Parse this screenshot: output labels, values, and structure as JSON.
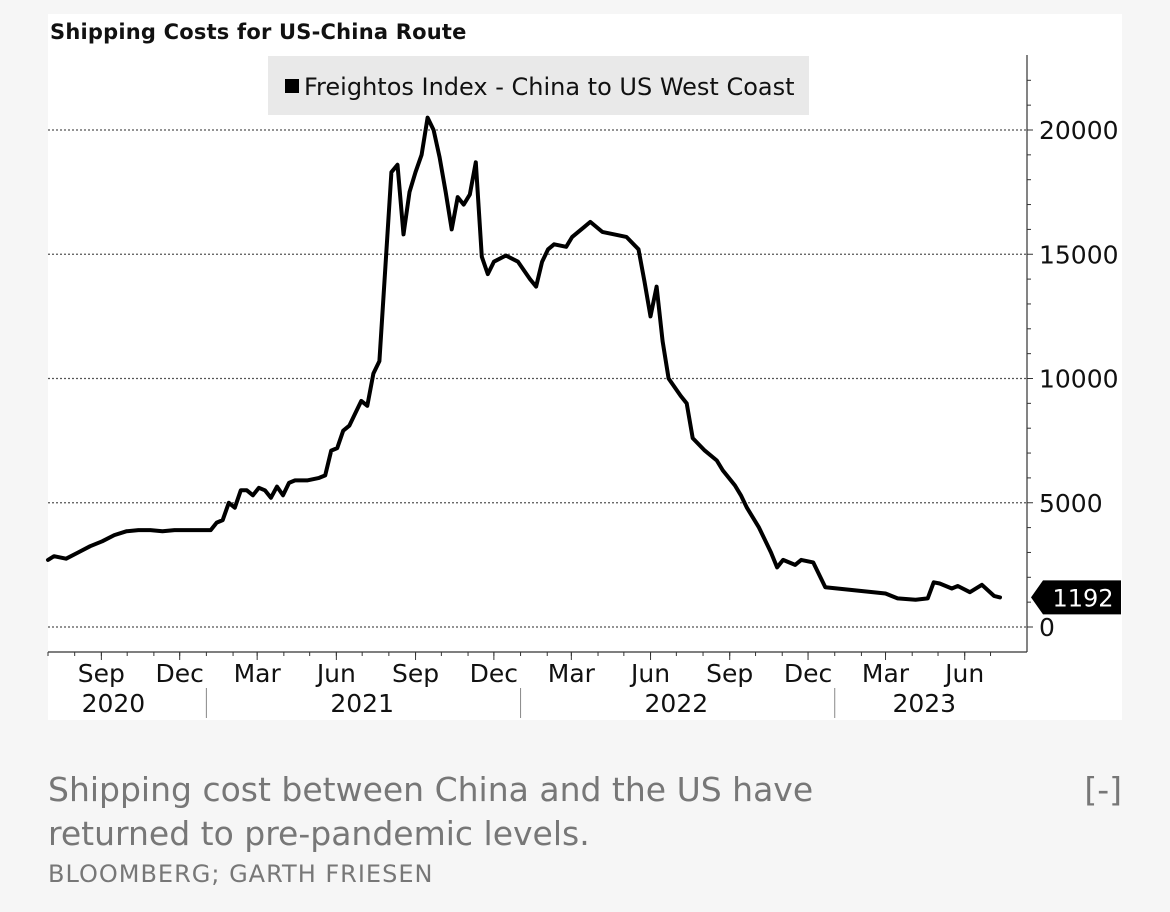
{
  "caption": {
    "text": "Shipping cost between China and the US have returned to pre-pandemic levels.",
    "toggle": "[-]",
    "credit": "BLOOMBERG; GARTH FRIESEN"
  },
  "chart_data": {
    "type": "line",
    "title": "Shipping Costs for US-China Route",
    "legend_placement": "top-left",
    "grid": true,
    "y_axis_side": "right",
    "ylim": [
      -500,
      23000
    ],
    "yticks": [
      0,
      5000,
      10000,
      15000,
      20000
    ],
    "xlim": [
      "2020-07-01",
      "2023-07-12"
    ],
    "month_ticks": [
      {
        "label": "Sep",
        "date": "2020-09-01"
      },
      {
        "label": "Dec",
        "date": "2020-12-01"
      },
      {
        "label": "Mar",
        "date": "2021-03-01"
      },
      {
        "label": "Jun",
        "date": "2021-06-01"
      },
      {
        "label": "Sep",
        "date": "2021-09-01"
      },
      {
        "label": "Dec",
        "date": "2021-12-01"
      },
      {
        "label": "Mar",
        "date": "2022-03-01"
      },
      {
        "label": "Jun",
        "date": "2022-06-01"
      },
      {
        "label": "Sep",
        "date": "2022-09-01"
      },
      {
        "label": "Dec",
        "date": "2022-12-01"
      },
      {
        "label": "Mar",
        "date": "2023-03-01"
      },
      {
        "label": "Jun",
        "date": "2023-06-01"
      }
    ],
    "year_labels": [
      {
        "label": "2020",
        "date": "2020-09-15"
      },
      {
        "label": "2021",
        "date": "2021-07-01"
      },
      {
        "label": "2022",
        "date": "2022-07-01"
      },
      {
        "label": "2023",
        "date": "2023-04-15"
      }
    ],
    "year_dividers": [
      "2021-01-01",
      "2022-01-01",
      "2023-01-01"
    ],
    "last_value_label": "1192",
    "series": [
      {
        "name": "Freightos Index - China to US West Coast",
        "color": "#000000",
        "points": [
          [
            "2020-07-01",
            2700
          ],
          [
            "2020-07-08",
            2850
          ],
          [
            "2020-07-22",
            2750
          ],
          [
            "2020-08-05",
            3000
          ],
          [
            "2020-08-19",
            3250
          ],
          [
            "2020-09-02",
            3450
          ],
          [
            "2020-09-16",
            3700
          ],
          [
            "2020-09-30",
            3850
          ],
          [
            "2020-10-14",
            3900
          ],
          [
            "2020-10-28",
            3900
          ],
          [
            "2020-11-11",
            3850
          ],
          [
            "2020-11-25",
            3900
          ],
          [
            "2020-12-09",
            3900
          ],
          [
            "2020-12-23",
            3900
          ],
          [
            "2021-01-06",
            3900
          ],
          [
            "2021-01-13",
            4200
          ],
          [
            "2021-01-20",
            4300
          ],
          [
            "2021-01-27",
            5000
          ],
          [
            "2021-02-03",
            4800
          ],
          [
            "2021-02-10",
            5500
          ],
          [
            "2021-02-17",
            5500
          ],
          [
            "2021-02-24",
            5300
          ],
          [
            "2021-03-03",
            5600
          ],
          [
            "2021-03-10",
            5500
          ],
          [
            "2021-03-17",
            5200
          ],
          [
            "2021-03-24",
            5650
          ],
          [
            "2021-03-31",
            5300
          ],
          [
            "2021-04-07",
            5800
          ],
          [
            "2021-04-14",
            5900
          ],
          [
            "2021-04-28",
            5900
          ],
          [
            "2021-05-12",
            6000
          ],
          [
            "2021-05-19",
            6100
          ],
          [
            "2021-05-26",
            7100
          ],
          [
            "2021-06-02",
            7200
          ],
          [
            "2021-06-09",
            7900
          ],
          [
            "2021-06-16",
            8100
          ],
          [
            "2021-06-23",
            8600
          ],
          [
            "2021-06-30",
            9100
          ],
          [
            "2021-07-07",
            8900
          ],
          [
            "2021-07-14",
            10200
          ],
          [
            "2021-07-21",
            10700
          ],
          [
            "2021-07-28",
            14500
          ],
          [
            "2021-08-04",
            18300
          ],
          [
            "2021-08-11",
            18600
          ],
          [
            "2021-08-18",
            15800
          ],
          [
            "2021-08-25",
            17500
          ],
          [
            "2021-09-01",
            18300
          ],
          [
            "2021-09-08",
            19000
          ],
          [
            "2021-09-15",
            20500
          ],
          [
            "2021-09-22",
            20000
          ],
          [
            "2021-09-29",
            18900
          ],
          [
            "2021-10-06",
            17500
          ],
          [
            "2021-10-13",
            16000
          ],
          [
            "2021-10-20",
            17300
          ],
          [
            "2021-10-27",
            17000
          ],
          [
            "2021-11-03",
            17400
          ],
          [
            "2021-11-10",
            18700
          ],
          [
            "2021-11-17",
            14900
          ],
          [
            "2021-11-24",
            14200
          ],
          [
            "2021-12-01",
            14700
          ],
          [
            "2021-12-15",
            14950
          ],
          [
            "2021-12-29",
            14700
          ],
          [
            "2022-01-12",
            14000
          ],
          [
            "2022-01-19",
            13700
          ],
          [
            "2022-01-26",
            14700
          ],
          [
            "2022-02-02",
            15200
          ],
          [
            "2022-02-09",
            15400
          ],
          [
            "2022-02-23",
            15300
          ],
          [
            "2022-03-02",
            15700
          ],
          [
            "2022-03-16",
            16100
          ],
          [
            "2022-03-23",
            16300
          ],
          [
            "2022-04-06",
            15900
          ],
          [
            "2022-04-20",
            15800
          ],
          [
            "2022-05-04",
            15700
          ],
          [
            "2022-05-18",
            15200
          ],
          [
            "2022-05-25",
            13900
          ],
          [
            "2022-06-01",
            12500
          ],
          [
            "2022-06-08",
            13700
          ],
          [
            "2022-06-15",
            11500
          ],
          [
            "2022-06-22",
            10000
          ],
          [
            "2022-07-06",
            9300
          ],
          [
            "2022-07-13",
            9000
          ],
          [
            "2022-07-20",
            7600
          ],
          [
            "2022-08-03",
            7100
          ],
          [
            "2022-08-17",
            6700
          ],
          [
            "2022-08-24",
            6300
          ],
          [
            "2022-09-07",
            5700
          ],
          [
            "2022-09-14",
            5300
          ],
          [
            "2022-09-21",
            4800
          ],
          [
            "2022-10-05",
            4000
          ],
          [
            "2022-10-19",
            3000
          ],
          [
            "2022-10-26",
            2400
          ],
          [
            "2022-11-02",
            2700
          ],
          [
            "2022-11-16",
            2500
          ],
          [
            "2022-11-23",
            2700
          ],
          [
            "2022-12-07",
            2600
          ],
          [
            "2022-12-21",
            1600
          ],
          [
            "2023-01-04",
            1550
          ],
          [
            "2023-01-18",
            1500
          ],
          [
            "2023-02-01",
            1450
          ],
          [
            "2023-02-15",
            1400
          ],
          [
            "2023-03-01",
            1350
          ],
          [
            "2023-03-15",
            1150
          ],
          [
            "2023-04-05",
            1100
          ],
          [
            "2023-04-19",
            1150
          ],
          [
            "2023-04-26",
            1800
          ],
          [
            "2023-05-03",
            1750
          ],
          [
            "2023-05-17",
            1550
          ],
          [
            "2023-05-24",
            1650
          ],
          [
            "2023-06-07",
            1400
          ],
          [
            "2023-06-21",
            1700
          ],
          [
            "2023-07-05",
            1250
          ],
          [
            "2023-07-12",
            1192
          ]
        ]
      }
    ]
  }
}
